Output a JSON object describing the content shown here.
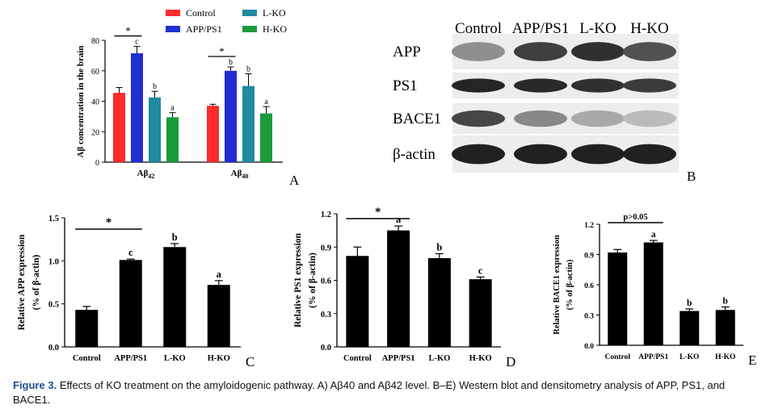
{
  "panels": {
    "A": {
      "letter": "A",
      "ylabel": "Aβ concentration in the brain",
      "ylim": [
        0,
        80
      ],
      "yticks": [
        "0",
        "20",
        "40",
        "60",
        "80"
      ],
      "legend": [
        {
          "name": "Control",
          "color": "#ff2a2a"
        },
        {
          "name": "APP/PS1",
          "color": "#1f2fd0"
        },
        {
          "name": "L-KO",
          "color": "#1f8aa0"
        },
        {
          "name": "H-KO",
          "color": "#1a9a3a"
        }
      ],
      "groups": [
        {
          "label": "Aβ42",
          "values": [
            45.5,
            71.5,
            42.5,
            29.5
          ],
          "errors": [
            3.5,
            4.5,
            4,
            3
          ],
          "letters": [
            "",
            "c",
            "b",
            "a"
          ],
          "sig": "*"
        },
        {
          "label": "Aβ40",
          "values": [
            37,
            60,
            50,
            32
          ],
          "errors": [
            1,
            2.5,
            8,
            4.5
          ],
          "letters": [
            "",
            "b",
            "b",
            "a"
          ],
          "sig": "*"
        }
      ]
    },
    "B": {
      "letter": "B",
      "lanes": [
        "Control",
        "APP/PS1",
        "L-KO",
        "H-KO"
      ],
      "rows": [
        {
          "label": "APP",
          "intensity": [
            0.42,
            0.78,
            0.85,
            0.7
          ]
        },
        {
          "label": "PS1",
          "intensity": [
            0.9,
            0.88,
            0.85,
            0.8
          ]
        },
        {
          "label": "BACE1",
          "intensity": [
            0.75,
            0.45,
            0.3,
            0.22
          ]
        },
        {
          "label": "β-actin",
          "intensity": [
            0.92,
            0.92,
            0.92,
            0.92
          ]
        }
      ]
    },
    "C": {
      "letter": "C",
      "ylabel1": "Relative APP expression",
      "ylabel2": "(% of β-actin)",
      "ylim": [
        0,
        1.5
      ],
      "yticks": [
        "0.0",
        "0.5",
        "1.0",
        "1.5"
      ],
      "categories": [
        "Control",
        "APP/PS1",
        "L-KO",
        "H-KO"
      ],
      "values": [
        0.43,
        1.01,
        1.16,
        0.72
      ],
      "errors": [
        0.04,
        0.01,
        0.04,
        0.05
      ],
      "letters": [
        "",
        "c",
        "b",
        "a"
      ],
      "sig": "*"
    },
    "D": {
      "letter": "D",
      "ylabel1": "Relative PS1 expression",
      "ylabel2": "(% of β-actin)",
      "ylim": [
        0,
        1.2
      ],
      "yticks": [
        "0.0",
        "0.3",
        "0.6",
        "0.9",
        "1.2"
      ],
      "categories": [
        "Control",
        "APP/PS1",
        "L-KO",
        "H-KO"
      ],
      "values": [
        0.82,
        1.05,
        0.8,
        0.61
      ],
      "errors": [
        0.08,
        0.04,
        0.04,
        0.02
      ],
      "letters": [
        "",
        "a",
        "b",
        "c"
      ],
      "sig": "*"
    },
    "E": {
      "letter": "E",
      "ylabel1": "Relative BACE1 expression",
      "ylabel2": "(% of β-actin)",
      "ylim": [
        0,
        1.2
      ],
      "yticks": [
        "0.0",
        "0.3",
        "0.6",
        "0.9",
        "1.2"
      ],
      "categories": [
        "Control",
        "APP/PS1",
        "L-KO",
        "H-KO"
      ],
      "values": [
        0.92,
        1.02,
        0.34,
        0.35
      ],
      "errors": [
        0.03,
        0.02,
        0.02,
        0.03
      ],
      "letters": [
        "",
        "a",
        "b",
        "b"
      ],
      "sig": "p>0.05"
    }
  },
  "caption": {
    "figure": "Figure 3.",
    "text": "Effects of KO treatment on the amyloidogenic pathway. A) Aβ40 and Aβ42 level. B–E) Western blot and densitometry analysis of APP, PS1, and BACE1."
  },
  "chart_data": [
    {
      "type": "bar",
      "categories": [
        "Aβ42",
        "Aβ40"
      ],
      "series": [
        {
          "name": "Control",
          "values": [
            45.5,
            37
          ]
        },
        {
          "name": "APP/PS1",
          "values": [
            71.5,
            60
          ]
        },
        {
          "name": "L-KO",
          "values": [
            42.5,
            50
          ]
        },
        {
          "name": "H-KO",
          "values": [
            29.5,
            32
          ]
        }
      ],
      "ylabel": "Aβ concentration in the brain",
      "ylim": [
        0,
        80
      ]
    },
    {
      "type": "bar",
      "categories": [
        "Control",
        "APP/PS1",
        "L-KO",
        "H-KO"
      ],
      "values": [
        0.43,
        1.01,
        1.16,
        0.72
      ],
      "ylabel": "Relative APP expression (% of β-actin)",
      "ylim": [
        0,
        1.5
      ]
    },
    {
      "type": "bar",
      "categories": [
        "Control",
        "APP/PS1",
        "L-KO",
        "H-KO"
      ],
      "values": [
        0.82,
        1.05,
        0.8,
        0.61
      ],
      "ylabel": "Relative PS1 expression (% of β-actin)",
      "ylim": [
        0,
        1.2
      ]
    },
    {
      "type": "bar",
      "categories": [
        "Control",
        "APP/PS1",
        "L-KO",
        "H-KO"
      ],
      "values": [
        0.92,
        1.02,
        0.34,
        0.35
      ],
      "ylabel": "Relative BACE1 expression (% of β-actin)",
      "ylim": [
        0,
        1.2
      ]
    }
  ]
}
